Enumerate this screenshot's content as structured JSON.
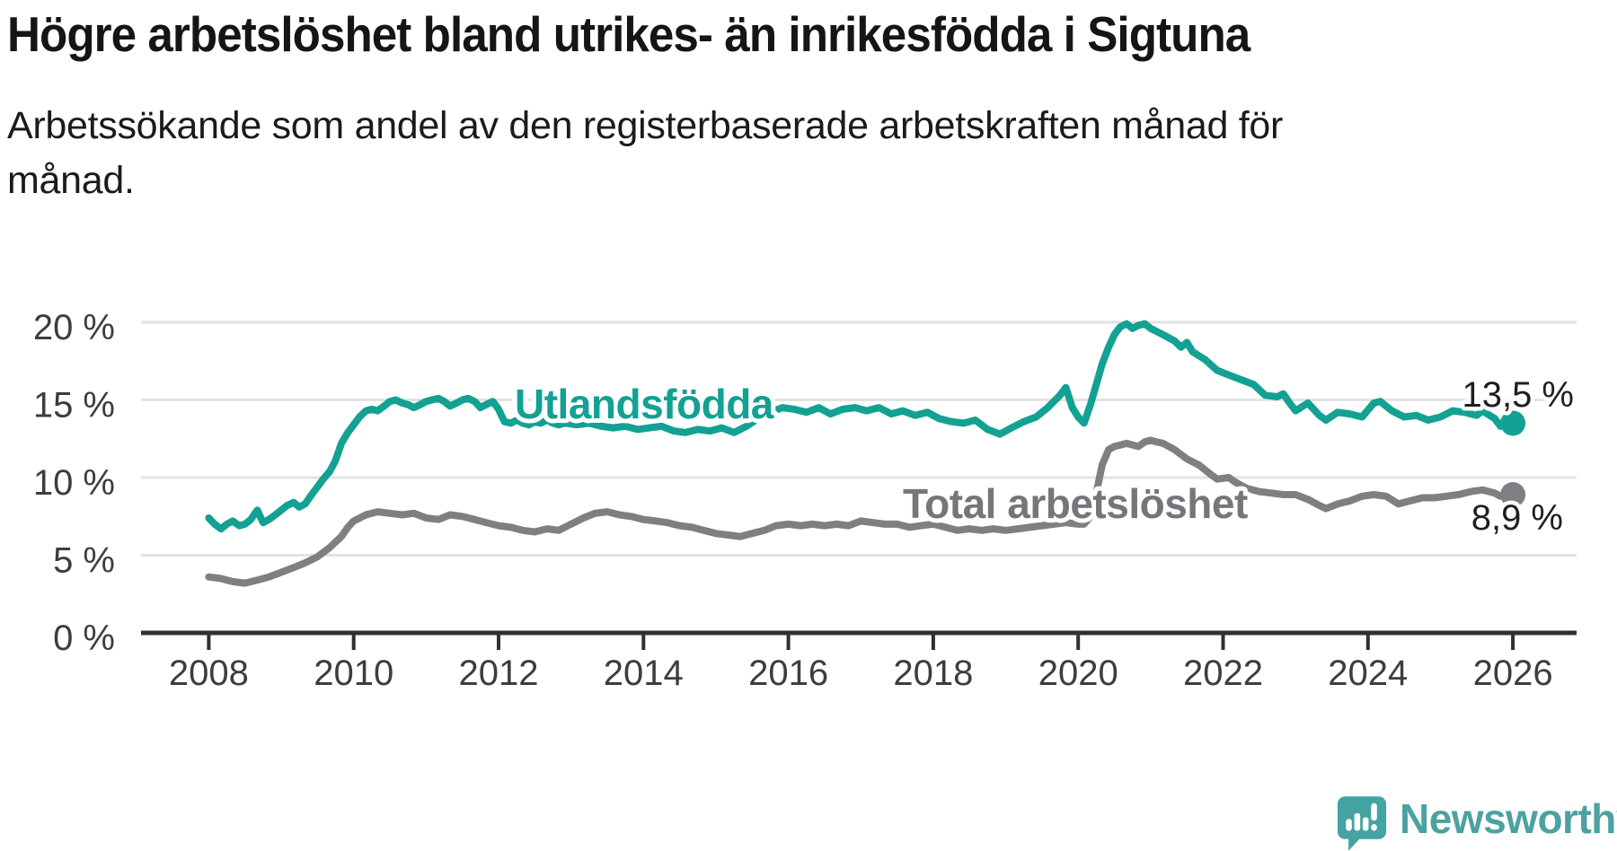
{
  "title": "Högre arbetslöshet bland utrikes- än inrikesfödda i Sigtuna",
  "subtitle_lines": [
    "Arbetssökande som andel av den registerbaserade arbetskraften månad för",
    "månad."
  ],
  "branding": {
    "logo_text": "Newsworthy",
    "logo_icon": "speech-bubble-bar-chart",
    "logo_color": "#4BA2A1",
    "icon_color": "#43A4A3"
  },
  "colors": {
    "background": "#ffffff",
    "gridline": "#e3e3e3",
    "axis_line": "#303030",
    "axis_text": "#3d3d3d",
    "value_label_text": "#1e1e1e",
    "series_foreign": "#12A192",
    "series_total": "#7f7f83",
    "series_total_label": "#76767a"
  },
  "chart_data": {
    "type": "line",
    "title": "Högre arbetslöshet bland utrikes- än inrikesfödda i Sigtuna",
    "xlabel": "",
    "ylabel": "",
    "grid": "horizontal",
    "legend_position": "inline-labels",
    "xlim": [
      2007.07,
      2026.88
    ],
    "ylim": [
      0,
      20.5
    ],
    "x_ticks": [
      {
        "v": 2008,
        "label": "2008"
      },
      {
        "v": 2010,
        "label": "2010"
      },
      {
        "v": 2012,
        "label": "2012"
      },
      {
        "v": 2014,
        "label": "2014"
      },
      {
        "v": 2016,
        "label": "2016"
      },
      {
        "v": 2018,
        "label": "2018"
      },
      {
        "v": 2020,
        "label": "2020"
      },
      {
        "v": 2022,
        "label": "2022"
      },
      {
        "v": 2024,
        "label": "2024"
      },
      {
        "v": 2026,
        "label": "2026"
      }
    ],
    "y_ticks": [
      {
        "v": 0,
        "label": "0 %"
      },
      {
        "v": 5,
        "label": "5 %"
      },
      {
        "v": 10,
        "label": "10 %"
      },
      {
        "v": 15,
        "label": "15 %"
      },
      {
        "v": 20,
        "label": "20 %"
      }
    ],
    "series": [
      {
        "id": "utlandsfodda",
        "name": "Utlandsfödda",
        "color": "#12A192",
        "end_label": "13,5 %",
        "last_value": 13.5,
        "points": [
          [
            2008.0,
            7.4
          ],
          [
            2008.08,
            7.0
          ],
          [
            2008.17,
            6.7
          ],
          [
            2008.25,
            7.0
          ],
          [
            2008.33,
            7.2
          ],
          [
            2008.42,
            6.9
          ],
          [
            2008.5,
            7.0
          ],
          [
            2008.58,
            7.3
          ],
          [
            2008.67,
            7.9
          ],
          [
            2008.75,
            7.1
          ],
          [
            2008.83,
            7.3
          ],
          [
            2008.92,
            7.6
          ],
          [
            2009.0,
            7.9
          ],
          [
            2009.08,
            8.2
          ],
          [
            2009.17,
            8.4
          ],
          [
            2009.25,
            8.1
          ],
          [
            2009.33,
            8.3
          ],
          [
            2009.42,
            8.9
          ],
          [
            2009.5,
            9.4
          ],
          [
            2009.58,
            9.9
          ],
          [
            2009.67,
            10.4
          ],
          [
            2009.75,
            11.1
          ],
          [
            2009.83,
            12.2
          ],
          [
            2009.92,
            12.9
          ],
          [
            2010.0,
            13.4
          ],
          [
            2010.08,
            13.9
          ],
          [
            2010.17,
            14.3
          ],
          [
            2010.25,
            14.4
          ],
          [
            2010.33,
            14.3
          ],
          [
            2010.42,
            14.6
          ],
          [
            2010.5,
            14.9
          ],
          [
            2010.58,
            15.0
          ],
          [
            2010.67,
            14.8
          ],
          [
            2010.75,
            14.7
          ],
          [
            2010.83,
            14.5
          ],
          [
            2010.92,
            14.7
          ],
          [
            2011.0,
            14.9
          ],
          [
            2011.08,
            15.0
          ],
          [
            2011.17,
            15.1
          ],
          [
            2011.25,
            14.9
          ],
          [
            2011.33,
            14.6
          ],
          [
            2011.42,
            14.8
          ],
          [
            2011.5,
            15.0
          ],
          [
            2011.58,
            15.1
          ],
          [
            2011.67,
            14.9
          ],
          [
            2011.75,
            14.5
          ],
          [
            2011.83,
            14.7
          ],
          [
            2011.92,
            14.9
          ],
          [
            2012.0,
            14.4
          ],
          [
            2012.08,
            13.6
          ],
          [
            2012.17,
            13.5
          ],
          [
            2012.25,
            13.7
          ],
          [
            2012.33,
            13.5
          ],
          [
            2012.42,
            13.4
          ],
          [
            2012.5,
            13.6
          ],
          [
            2012.58,
            13.5
          ],
          [
            2012.67,
            13.7
          ],
          [
            2012.75,
            13.5
          ],
          [
            2012.83,
            13.4
          ],
          [
            2012.92,
            13.5
          ],
          [
            2013.08,
            13.4
          ],
          [
            2013.25,
            13.5
          ],
          [
            2013.42,
            13.3
          ],
          [
            2013.58,
            13.2
          ],
          [
            2013.75,
            13.3
          ],
          [
            2013.92,
            13.1
          ],
          [
            2014.08,
            13.2
          ],
          [
            2014.25,
            13.3
          ],
          [
            2014.42,
            13.0
          ],
          [
            2014.58,
            12.9
          ],
          [
            2014.75,
            13.1
          ],
          [
            2014.92,
            13.0
          ],
          [
            2015.08,
            13.2
          ],
          [
            2015.25,
            12.9
          ],
          [
            2015.42,
            13.3
          ],
          [
            2015.58,
            13.8
          ],
          [
            2015.75,
            14.2
          ],
          [
            2015.92,
            14.5
          ],
          [
            2016.08,
            14.4
          ],
          [
            2016.25,
            14.2
          ],
          [
            2016.42,
            14.5
          ],
          [
            2016.58,
            14.1
          ],
          [
            2016.75,
            14.4
          ],
          [
            2016.92,
            14.5
          ],
          [
            2017.08,
            14.3
          ],
          [
            2017.25,
            14.5
          ],
          [
            2017.42,
            14.1
          ],
          [
            2017.58,
            14.3
          ],
          [
            2017.75,
            14.0
          ],
          [
            2017.92,
            14.2
          ],
          [
            2018.08,
            13.8
          ],
          [
            2018.25,
            13.6
          ],
          [
            2018.42,
            13.5
          ],
          [
            2018.58,
            13.7
          ],
          [
            2018.75,
            13.1
          ],
          [
            2018.92,
            12.8
          ],
          [
            2019.08,
            13.2
          ],
          [
            2019.25,
            13.6
          ],
          [
            2019.42,
            13.9
          ],
          [
            2019.58,
            14.5
          ],
          [
            2019.75,
            15.3
          ],
          [
            2019.83,
            15.8
          ],
          [
            2019.92,
            14.5
          ],
          [
            2020.0,
            13.9
          ],
          [
            2020.08,
            13.5
          ],
          [
            2020.17,
            14.7
          ],
          [
            2020.25,
            16.0
          ],
          [
            2020.33,
            17.3
          ],
          [
            2020.42,
            18.4
          ],
          [
            2020.5,
            19.2
          ],
          [
            2020.58,
            19.7
          ],
          [
            2020.67,
            19.9
          ],
          [
            2020.75,
            19.6
          ],
          [
            2020.83,
            19.8
          ],
          [
            2020.92,
            19.9
          ],
          [
            2021.0,
            19.6
          ],
          [
            2021.17,
            19.2
          ],
          [
            2021.33,
            18.8
          ],
          [
            2021.42,
            18.4
          ],
          [
            2021.5,
            18.7
          ],
          [
            2021.58,
            18.1
          ],
          [
            2021.75,
            17.6
          ],
          [
            2021.92,
            16.9
          ],
          [
            2022.08,
            16.6
          ],
          [
            2022.25,
            16.3
          ],
          [
            2022.42,
            16.0
          ],
          [
            2022.58,
            15.3
          ],
          [
            2022.75,
            15.2
          ],
          [
            2022.83,
            15.4
          ],
          [
            2022.92,
            14.8
          ],
          [
            2023.0,
            14.3
          ],
          [
            2023.17,
            14.8
          ],
          [
            2023.33,
            14.0
          ],
          [
            2023.42,
            13.7
          ],
          [
            2023.58,
            14.2
          ],
          [
            2023.75,
            14.1
          ],
          [
            2023.92,
            13.9
          ],
          [
            2024.08,
            14.8
          ],
          [
            2024.17,
            14.9
          ],
          [
            2024.33,
            14.3
          ],
          [
            2024.5,
            13.9
          ],
          [
            2024.67,
            14.0
          ],
          [
            2024.83,
            13.7
          ],
          [
            2025.0,
            13.9
          ],
          [
            2025.17,
            14.3
          ],
          [
            2025.33,
            14.2
          ],
          [
            2025.5,
            14.0
          ],
          [
            2025.58,
            14.3
          ],
          [
            2025.75,
            13.8
          ],
          [
            2025.83,
            13.3
          ],
          [
            2025.92,
            13.4
          ],
          [
            2026.0,
            13.5
          ]
        ]
      },
      {
        "id": "total-arbetsloshet",
        "name": "Total arbetslöshet",
        "color": "#7f7f83",
        "end_label": "8,9 %",
        "last_value": 8.9,
        "points": [
          [
            2008.0,
            3.6
          ],
          [
            2008.17,
            3.5
          ],
          [
            2008.33,
            3.3
          ],
          [
            2008.5,
            3.2
          ],
          [
            2008.67,
            3.4
          ],
          [
            2008.83,
            3.6
          ],
          [
            2009.0,
            3.9
          ],
          [
            2009.17,
            4.2
          ],
          [
            2009.33,
            4.5
          ],
          [
            2009.5,
            4.9
          ],
          [
            2009.67,
            5.5
          ],
          [
            2009.83,
            6.2
          ],
          [
            2009.92,
            6.8
          ],
          [
            2010.0,
            7.2
          ],
          [
            2010.17,
            7.6
          ],
          [
            2010.33,
            7.8
          ],
          [
            2010.5,
            7.7
          ],
          [
            2010.67,
            7.6
          ],
          [
            2010.83,
            7.7
          ],
          [
            2011.0,
            7.4
          ],
          [
            2011.17,
            7.3
          ],
          [
            2011.33,
            7.6
          ],
          [
            2011.5,
            7.5
          ],
          [
            2011.67,
            7.3
          ],
          [
            2011.83,
            7.1
          ],
          [
            2012.0,
            6.9
          ],
          [
            2012.17,
            6.8
          ],
          [
            2012.33,
            6.6
          ],
          [
            2012.5,
            6.5
          ],
          [
            2012.67,
            6.7
          ],
          [
            2012.83,
            6.6
          ],
          [
            2013.0,
            7.0
          ],
          [
            2013.17,
            7.4
          ],
          [
            2013.33,
            7.7
          ],
          [
            2013.5,
            7.8
          ],
          [
            2013.67,
            7.6
          ],
          [
            2013.83,
            7.5
          ],
          [
            2014.0,
            7.3
          ],
          [
            2014.17,
            7.2
          ],
          [
            2014.33,
            7.1
          ],
          [
            2014.5,
            6.9
          ],
          [
            2014.67,
            6.8
          ],
          [
            2014.83,
            6.6
          ],
          [
            2015.0,
            6.4
          ],
          [
            2015.17,
            6.3
          ],
          [
            2015.33,
            6.2
          ],
          [
            2015.5,
            6.4
          ],
          [
            2015.67,
            6.6
          ],
          [
            2015.83,
            6.9
          ],
          [
            2016.0,
            7.0
          ],
          [
            2016.17,
            6.9
          ],
          [
            2016.33,
            7.0
          ],
          [
            2016.5,
            6.9
          ],
          [
            2016.67,
            7.0
          ],
          [
            2016.83,
            6.9
          ],
          [
            2017.0,
            7.2
          ],
          [
            2017.17,
            7.1
          ],
          [
            2017.33,
            7.0
          ],
          [
            2017.5,
            7.0
          ],
          [
            2017.67,
            6.8
          ],
          [
            2017.83,
            6.9
          ],
          [
            2018.0,
            7.0
          ],
          [
            2018.17,
            6.8
          ],
          [
            2018.33,
            6.6
          ],
          [
            2018.5,
            6.7
          ],
          [
            2018.67,
            6.6
          ],
          [
            2018.83,
            6.7
          ],
          [
            2019.0,
            6.6
          ],
          [
            2019.17,
            6.7
          ],
          [
            2019.33,
            6.8
          ],
          [
            2019.5,
            6.9
          ],
          [
            2019.67,
            7.0
          ],
          [
            2019.83,
            7.1
          ],
          [
            2020.0,
            7.0
          ],
          [
            2020.08,
            7.0
          ],
          [
            2020.17,
            7.5
          ],
          [
            2020.25,
            9.0
          ],
          [
            2020.33,
            10.8
          ],
          [
            2020.42,
            11.8
          ],
          [
            2020.5,
            12.0
          ],
          [
            2020.58,
            12.1
          ],
          [
            2020.67,
            12.2
          ],
          [
            2020.75,
            12.1
          ],
          [
            2020.83,
            12.0
          ],
          [
            2020.92,
            12.3
          ],
          [
            2021.0,
            12.4
          ],
          [
            2021.08,
            12.3
          ],
          [
            2021.17,
            12.2
          ],
          [
            2021.33,
            11.8
          ],
          [
            2021.5,
            11.2
          ],
          [
            2021.67,
            10.8
          ],
          [
            2021.83,
            10.2
          ],
          [
            2021.92,
            9.9
          ],
          [
            2022.08,
            10.0
          ],
          [
            2022.17,
            9.7
          ],
          [
            2022.33,
            9.3
          ],
          [
            2022.5,
            9.1
          ],
          [
            2022.67,
            9.0
          ],
          [
            2022.83,
            8.9
          ],
          [
            2023.0,
            8.9
          ],
          [
            2023.17,
            8.6
          ],
          [
            2023.33,
            8.2
          ],
          [
            2023.42,
            8.0
          ],
          [
            2023.58,
            8.3
          ],
          [
            2023.75,
            8.5
          ],
          [
            2023.92,
            8.8
          ],
          [
            2024.08,
            8.9
          ],
          [
            2024.25,
            8.8
          ],
          [
            2024.42,
            8.3
          ],
          [
            2024.58,
            8.5
          ],
          [
            2024.75,
            8.7
          ],
          [
            2024.92,
            8.7
          ],
          [
            2025.08,
            8.8
          ],
          [
            2025.25,
            8.9
          ],
          [
            2025.42,
            9.1
          ],
          [
            2025.58,
            9.2
          ],
          [
            2025.75,
            9.0
          ],
          [
            2025.83,
            8.8
          ],
          [
            2026.0,
            8.9
          ]
        ]
      }
    ]
  }
}
